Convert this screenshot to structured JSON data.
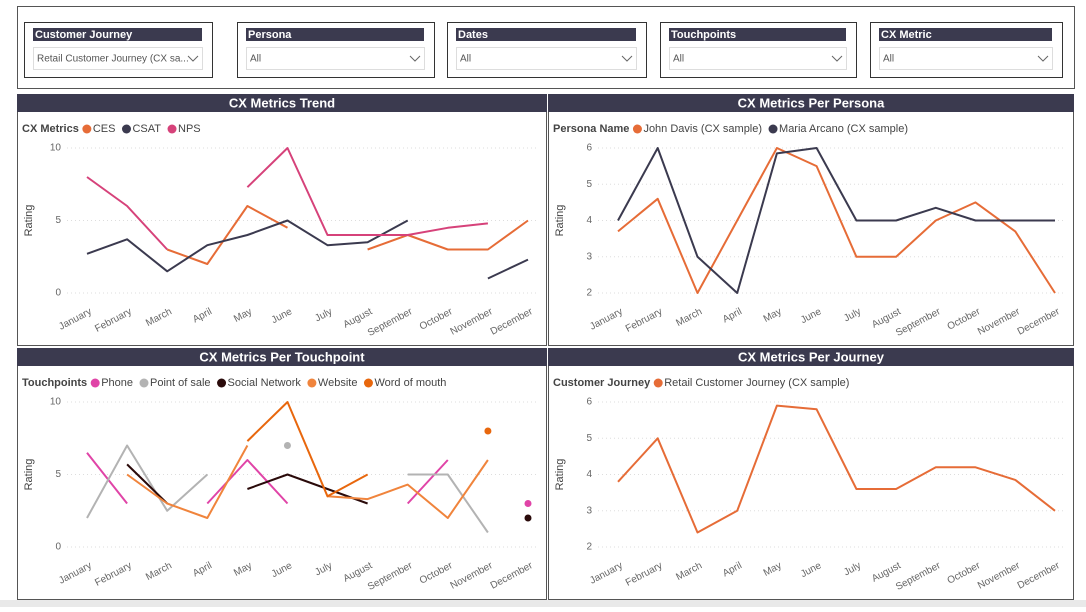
{
  "slicers": [
    {
      "label": "Customer Journey",
      "value": "Retail Customer Journey (CX sa..."
    },
    {
      "label": "Persona",
      "value": "All"
    },
    {
      "label": "Dates",
      "value": "All"
    },
    {
      "label": "Touchpoints",
      "value": "All"
    },
    {
      "label": "CX Metric",
      "value": "All"
    }
  ],
  "chart_data": [
    {
      "type": "line",
      "title": "CX Metrics Trend",
      "legend_title": "CX Metrics",
      "y_label": "Rating",
      "categories": [
        "January",
        "February",
        "March",
        "April",
        "May",
        "June",
        "July",
        "August",
        "September",
        "October",
        "November",
        "December"
      ],
      "series": [
        {
          "name": "CES",
          "color": "#e66c37",
          "values": [
            null,
            null,
            3,
            2,
            6,
            4.5,
            null,
            3,
            4,
            3,
            3,
            5
          ]
        },
        {
          "name": "CSAT",
          "color": "#3b3a4f",
          "values": [
            2.7,
            3.7,
            1.5,
            3.3,
            4,
            5,
            3.3,
            3.5,
            5,
            null,
            1,
            2.3
          ]
        },
        {
          "name": "NPS",
          "color": "#d6427a",
          "values": [
            8,
            6,
            3,
            null,
            7.3,
            10,
            4,
            4,
            4,
            4.5,
            4.8,
            null
          ]
        }
      ],
      "ylim": [
        0,
        10
      ],
      "yticks": [
        0,
        5,
        10
      ],
      "grid": true
    },
    {
      "type": "line",
      "title": "CX Metrics Per Persona",
      "legend_title": "Persona Name",
      "y_label": "Rating",
      "categories": [
        "January",
        "February",
        "March",
        "April",
        "May",
        "June",
        "July",
        "August",
        "September",
        "October",
        "November",
        "December"
      ],
      "series": [
        {
          "name": "John Davis (CX sample)",
          "color": "#e66c37",
          "values": [
            3.7,
            4.6,
            2,
            4,
            6,
            5.5,
            3,
            3,
            4,
            4.5,
            3.7,
            2
          ]
        },
        {
          "name": "Maria Arcano (CX sample)",
          "color": "#3b3a4f",
          "values": [
            4,
            6,
            3,
            2,
            5.85,
            6,
            4,
            4,
            4.35,
            4,
            4,
            4
          ]
        }
      ],
      "ylim": [
        2,
        6
      ],
      "yticks": [
        2,
        3,
        4,
        5,
        6
      ],
      "grid": true
    },
    {
      "type": "line",
      "title": "CX Metrics Per Touchpoint",
      "legend_title": "Touchpoints",
      "y_label": "Rating",
      "categories": [
        "January",
        "February",
        "March",
        "April",
        "May",
        "June",
        "July",
        "August",
        "September",
        "October",
        "November",
        "December"
      ],
      "series": [
        {
          "name": "Phone",
          "color": "#e044a7",
          "values": [
            6.5,
            3,
            null,
            3,
            6,
            3,
            null,
            null,
            3,
            6,
            null,
            3
          ]
        },
        {
          "name": "Point of sale",
          "color": "#b3b3b3",
          "values": [
            2,
            7,
            2.5,
            5,
            null,
            7,
            null,
            null,
            5,
            5,
            1,
            null
          ]
        },
        {
          "name": "Social Network",
          "color": "#2a0a0a",
          "values": [
            null,
            5.7,
            3,
            null,
            4,
            5,
            4,
            3,
            null,
            null,
            null,
            2
          ]
        },
        {
          "name": "Website",
          "color": "#f0843c",
          "values": [
            null,
            5,
            3,
            2,
            7,
            null,
            3.5,
            3.3,
            4.3,
            2,
            6,
            null
          ]
        },
        {
          "name": "Word of mouth",
          "color": "#e8670d",
          "values": [
            null,
            null,
            null,
            null,
            7.3,
            10,
            3.5,
            5,
            null,
            null,
            8,
            null
          ]
        }
      ],
      "ylim": [
        0,
        10
      ],
      "yticks": [
        0,
        5,
        10
      ],
      "grid": true
    },
    {
      "type": "line",
      "title": "CX Metrics Per Journey",
      "legend_title": "Customer Journey",
      "y_label": "Rating",
      "categories": [
        "January",
        "February",
        "March",
        "April",
        "May",
        "June",
        "July",
        "August",
        "September",
        "October",
        "November",
        "December"
      ],
      "series": [
        {
          "name": "Retail Customer Journey (CX sample)",
          "color": "#e66c37",
          "values": [
            3.8,
            5,
            2.4,
            3,
            5.9,
            5.8,
            3.6,
            3.6,
            4.2,
            4.2,
            3.85,
            3
          ]
        }
      ],
      "ylim": [
        2,
        6
      ],
      "yticks": [
        2,
        3,
        4,
        5,
        6
      ],
      "grid": true
    }
  ]
}
